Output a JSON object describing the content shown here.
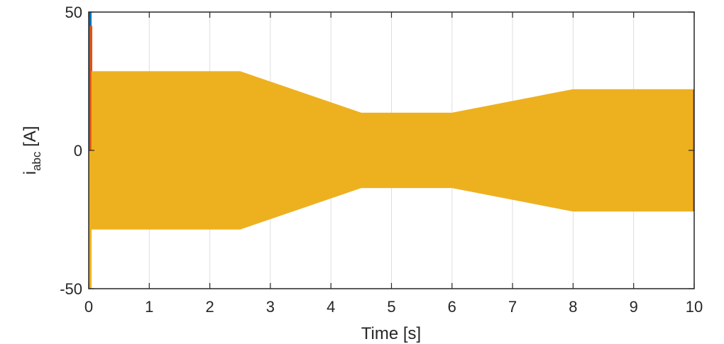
{
  "chart_data": {
    "type": "area",
    "xlabel": "Time [s]",
    "ylabel_main": "i",
    "ylabel_sub": "abc",
    "ylabel_unit": " [A]",
    "xlim": [
      0,
      10
    ],
    "ylim": [
      -50,
      50
    ],
    "xticks": [
      "0",
      "1",
      "2",
      "3",
      "4",
      "5",
      "6",
      "7",
      "8",
      "9",
      "10"
    ],
    "yticks": [
      "-50",
      "0",
      "50"
    ],
    "grid": "vertical",
    "colors": {
      "phase_a": "#0072BD",
      "phase_b": "#D95319",
      "phase_c": "#EDB120",
      "axis": "#262626",
      "grid": "#dedede"
    },
    "startup_transient": {
      "t": [
        0,
        0.05
      ],
      "peaks": {
        "phase_a": 50,
        "phase_b": 45,
        "phase_c": -50
      }
    },
    "envelope": {
      "t": [
        0.05,
        2.5,
        4.5,
        6,
        8,
        10
      ],
      "amplitude": [
        28.5,
        28.5,
        13.5,
        13.5,
        22,
        22
      ]
    }
  }
}
